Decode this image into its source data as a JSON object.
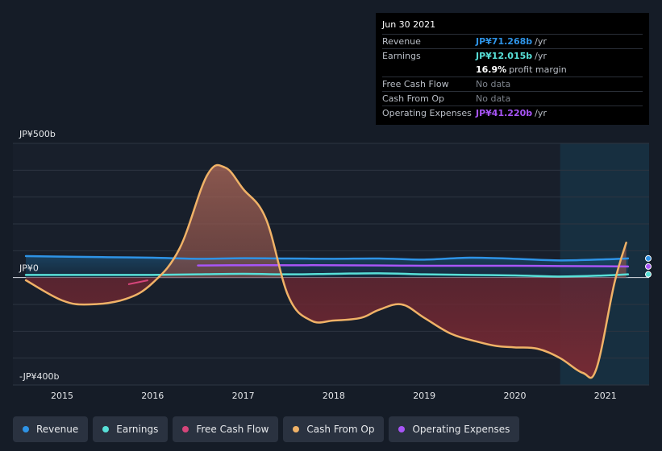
{
  "chart_data": {
    "type": "line",
    "y_unit": "JP¥ billions",
    "ylim": [
      -400,
      500
    ],
    "y_ticks": [
      {
        "value": 500,
        "label": "JP¥500b"
      },
      {
        "value": 0,
        "label": "JP¥0"
      },
      {
        "value": -400,
        "label": "-JP¥400b"
      }
    ],
    "x_ticks": [
      "2015",
      "2016",
      "2017",
      "2018",
      "2019",
      "2020",
      "2021"
    ],
    "xlim": [
      2014.6,
      2021.25
    ],
    "forecast_start": 2020.5,
    "series": [
      {
        "name": "Revenue",
        "color": "#2e93e6",
        "x": [
          2014.6,
          2015.0,
          2015.5,
          2016.0,
          2016.5,
          2017.0,
          2017.5,
          2018.0,
          2018.5,
          2019.0,
          2019.5,
          2020.0,
          2020.5,
          2021.0,
          2021.25
        ],
        "values": [
          80,
          78,
          76,
          74,
          70,
          72,
          71,
          70,
          71,
          67,
          74,
          70,
          64,
          68,
          71.268
        ]
      },
      {
        "name": "Earnings",
        "color": "#58e0d8",
        "x": [
          2014.6,
          2015.0,
          2015.5,
          2016.0,
          2016.5,
          2017.0,
          2017.5,
          2018.0,
          2018.5,
          2019.0,
          2019.5,
          2020.0,
          2020.5,
          2021.0,
          2021.25
        ],
        "values": [
          10,
          10,
          10,
          10,
          12,
          14,
          12,
          14,
          16,
          12,
          10,
          8,
          4,
          8,
          12.015
        ]
      },
      {
        "name": "Operating Expenses",
        "color": "#a855f7",
        "x": [
          2016.5,
          2017.0,
          2017.5,
          2018.0,
          2018.5,
          2019.0,
          2019.5,
          2020.0,
          2020.5,
          2021.0,
          2021.25
        ],
        "values": [
          45,
          46,
          46,
          46,
          45,
          44,
          44,
          44,
          43,
          42,
          41.22
        ]
      },
      {
        "name": "Cash From Op",
        "color": "#f0b267",
        "x": [
          2014.6,
          2015.0,
          2015.3,
          2015.7,
          2016.0,
          2016.3,
          2016.6,
          2016.8,
          2017.0,
          2017.25,
          2017.5,
          2017.75,
          2018.0,
          2018.3,
          2018.5,
          2018.75,
          2019.0,
          2019.3,
          2019.6,
          2019.8,
          2020.0,
          2020.25,
          2020.5,
          2020.75,
          2020.9,
          2021.1,
          2021.23
        ],
        "values": [
          -10,
          -85,
          -100,
          -80,
          -20,
          110,
          380,
          410,
          330,
          220,
          -70,
          -160,
          -160,
          -150,
          -120,
          -100,
          -150,
          -210,
          -240,
          -255,
          -260,
          -265,
          -300,
          -355,
          -340,
          -20,
          130
        ]
      }
    ],
    "legend": [
      "Revenue",
      "Earnings",
      "Free Cash Flow",
      "Cash From Op",
      "Operating Expenses"
    ],
    "legend_colors": [
      "#2e93e6",
      "#58e0d8",
      "#d6457a",
      "#f0b267",
      "#a855f7"
    ]
  },
  "tooltip": {
    "date": "Jun 30 2021",
    "rows": [
      {
        "label": "Revenue",
        "value": "JP¥71.268b",
        "unit": "/yr",
        "color": "#2e93e6"
      },
      {
        "label": "Earnings",
        "value": "JP¥12.015b",
        "unit": "/yr",
        "color": "#58e0d8"
      },
      {
        "label": "",
        "value": "16.9%",
        "unit": "profit margin",
        "color": "#ffffff"
      },
      {
        "label": "Free Cash Flow",
        "value": "No data",
        "unit": "",
        "color": "#7d838c"
      },
      {
        "label": "Cash From Op",
        "value": "No data",
        "unit": "",
        "color": "#7d838c"
      },
      {
        "label": "Operating Expenses",
        "value": "JP¥41.220b",
        "unit": "/yr",
        "color": "#a855f7"
      }
    ]
  }
}
